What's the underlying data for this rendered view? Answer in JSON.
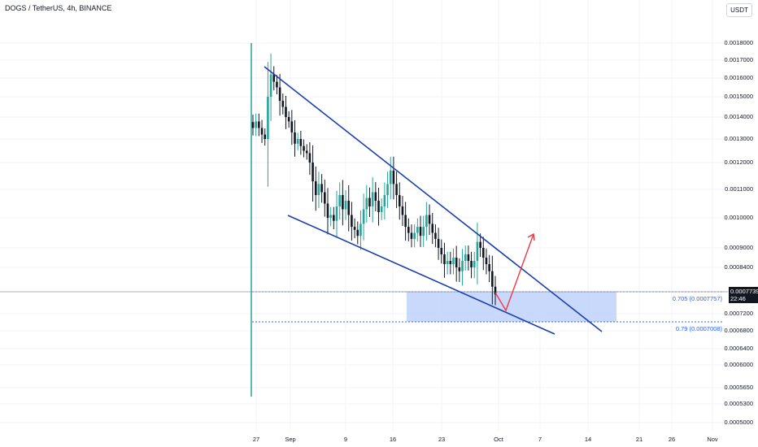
{
  "header": {
    "title": "DOGS / TetherUS, 4h, BINANCE",
    "currency_button": "USDT"
  },
  "current_price": {
    "value": "0.0007739",
    "countdown": "22:46"
  },
  "fib_levels": [
    {
      "label": "0.705 (0.0007757)"
    },
    {
      "label": "0.79 (0.0007008)"
    }
  ],
  "colors": {
    "up": "#26a69a",
    "down": "#131722",
    "trendline": "#1c3fae",
    "arrow": "#f23645",
    "zone": "#bbcffa"
  },
  "chart_data": {
    "type": "candlestick",
    "symbol": "DOGS / TetherUS",
    "interval": "4h",
    "exchange": "BINANCE",
    "y_ticks": [
      "0.0018000",
      "0.0017000",
      "0.0016000",
      "0.0015000",
      "0.0014000",
      "0.0013000",
      "0.0012000",
      "0.0011000",
      "0.0010000",
      "0.0009000",
      "0.0008400",
      "0.0007200",
      "0.0006800",
      "0.0006400",
      "0.0006000",
      "0.0005650",
      "0.0005300",
      "0.0005000"
    ],
    "x_ticks": [
      "27",
      "Sep",
      "9",
      "16",
      "23",
      "Oct",
      "7",
      "14",
      "21",
      "26",
      "Nov"
    ],
    "close_path": [
      0.00135,
      0.00138,
      0.00135,
      0.00132,
      0.0013,
      0.0015,
      0.00162,
      0.00158,
      0.00155,
      0.00148,
      0.00145,
      0.0014,
      0.00138,
      0.00133,
      0.00128,
      0.0013,
      0.00127,
      0.00125,
      0.00124,
      0.0012,
      0.00113,
      0.00108,
      0.00112,
      0.00109,
      0.00105,
      0.001,
      0.00101,
      0.00099,
      0.00104,
      0.00108,
      0.00103,
      0.00106,
      0.00101,
      0.00097,
      0.00096,
      0.00094,
      0.00098,
      0.00103,
      0.00107,
      0.00104,
      0.00109,
      0.00106,
      0.00102,
      0.00104,
      0.00108,
      0.00112,
      0.00117,
      0.00112,
      0.00108,
      0.00104,
      0.00101,
      0.00097,
      0.00095,
      0.00093,
      0.00095,
      0.00097,
      0.00094,
      0.00097,
      0.00101,
      0.00098,
      0.00095,
      0.00093,
      0.0009,
      0.00088,
      0.00085,
      0.00086,
      0.00085,
      0.00087,
      0.00084,
      0.00083,
      0.00086,
      0.00088,
      0.00086,
      0.00084,
      0.00086,
      0.00092,
      0.0009,
      0.00087,
      0.00085,
      0.00083,
      0.00079,
      0.00077
    ],
    "trendline_upper": {
      "from": [
        "Aug 28",
        0.00167
      ],
      "to": [
        "Oct 16",
        0.00069
      ]
    },
    "trendline_lower": {
      "from": [
        "Sep 3",
        0.00098
      ],
      "to": [
        "Oct 12",
        0.00068
      ]
    },
    "arrow_path": [
      "0.00078",
      "0.00071",
      "0.00092"
    ]
  }
}
